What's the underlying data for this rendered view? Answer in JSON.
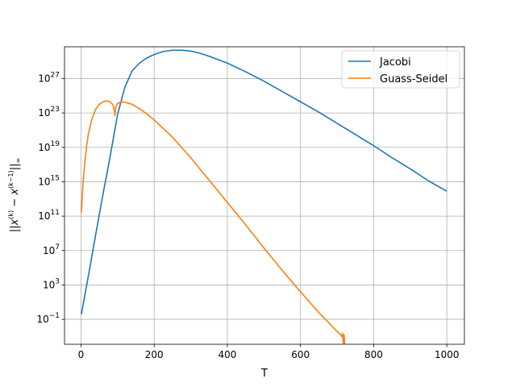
{
  "chart_data": {
    "type": "line",
    "title": "",
    "xlabel": "T",
    "ylabel": "||x^(k) − x^(k−1)||∞",
    "yscale": "log",
    "xlim": [
      -45,
      1048
    ],
    "ylim_log10": [
      -3.9,
      30.7
    ],
    "xticks": [
      0,
      200,
      400,
      600,
      800,
      1000
    ],
    "xtick_labels": [
      "0",
      "200",
      "400",
      "600",
      "800",
      "1000"
    ],
    "ytick_exponents": [
      -1,
      3,
      7,
      11,
      15,
      19,
      23,
      27
    ],
    "ytick_labels": [
      {
        "base": "10",
        "exp": "−1"
      },
      {
        "base": "10",
        "exp": "3"
      },
      {
        "base": "10",
        "exp": "7"
      },
      {
        "base": "10",
        "exp": "11"
      },
      {
        "base": "10",
        "exp": "15"
      },
      {
        "base": "10",
        "exp": "19"
      },
      {
        "base": "10",
        "exp": "23"
      },
      {
        "base": "10",
        "exp": "27"
      }
    ],
    "grid": true,
    "legend_position": "top-right",
    "series": [
      {
        "name": "Jacobi",
        "color": "#1f77b4",
        "x": [
          1,
          20,
          40,
          60,
          80,
          100,
          120,
          140,
          160,
          180,
          200,
          225,
          250,
          275,
          300,
          325,
          350,
          400,
          450,
          500,
          550,
          600,
          650,
          700,
          750,
          800,
          850,
          900,
          950,
          1000
        ],
        "log10_y": [
          -0.4,
          4.0,
          8.8,
          13.5,
          18.0,
          22.8,
          26.0,
          27.9,
          28.8,
          29.4,
          29.8,
          30.15,
          30.3,
          30.3,
          30.2,
          29.95,
          29.6,
          28.8,
          27.8,
          26.7,
          25.5,
          24.3,
          23.1,
          21.8,
          20.5,
          19.2,
          17.8,
          16.5,
          15.1,
          13.9
        ]
      },
      {
        "name": "Guass-Seidel",
        "color": "#ff7f0e",
        "x": [
          1,
          5,
          10,
          15,
          20,
          30,
          40,
          50,
          60,
          70,
          80,
          88,
          92,
          93,
          95,
          100,
          110,
          120,
          140,
          160,
          180,
          200,
          250,
          300,
          350,
          400,
          450,
          500,
          550,
          600,
          650,
          700,
          710,
          713,
          715,
          717,
          719,
          720,
          721
        ],
        "log10_y": [
          11.4,
          14.5,
          17.0,
          19.0,
          20.5,
          22.3,
          23.4,
          24.0,
          24.3,
          24.4,
          24.3,
          23.9,
          23.1,
          22.7,
          23.7,
          24.1,
          24.3,
          24.25,
          24.0,
          23.5,
          22.9,
          22.2,
          20.2,
          17.8,
          15.2,
          12.6,
          10.0,
          7.3,
          4.7,
          2.2,
          -0.2,
          -2.4,
          -2.8,
          -3.0,
          -2.6,
          -3.8,
          -2.8,
          -3.3,
          -4.0
        ]
      }
    ]
  }
}
